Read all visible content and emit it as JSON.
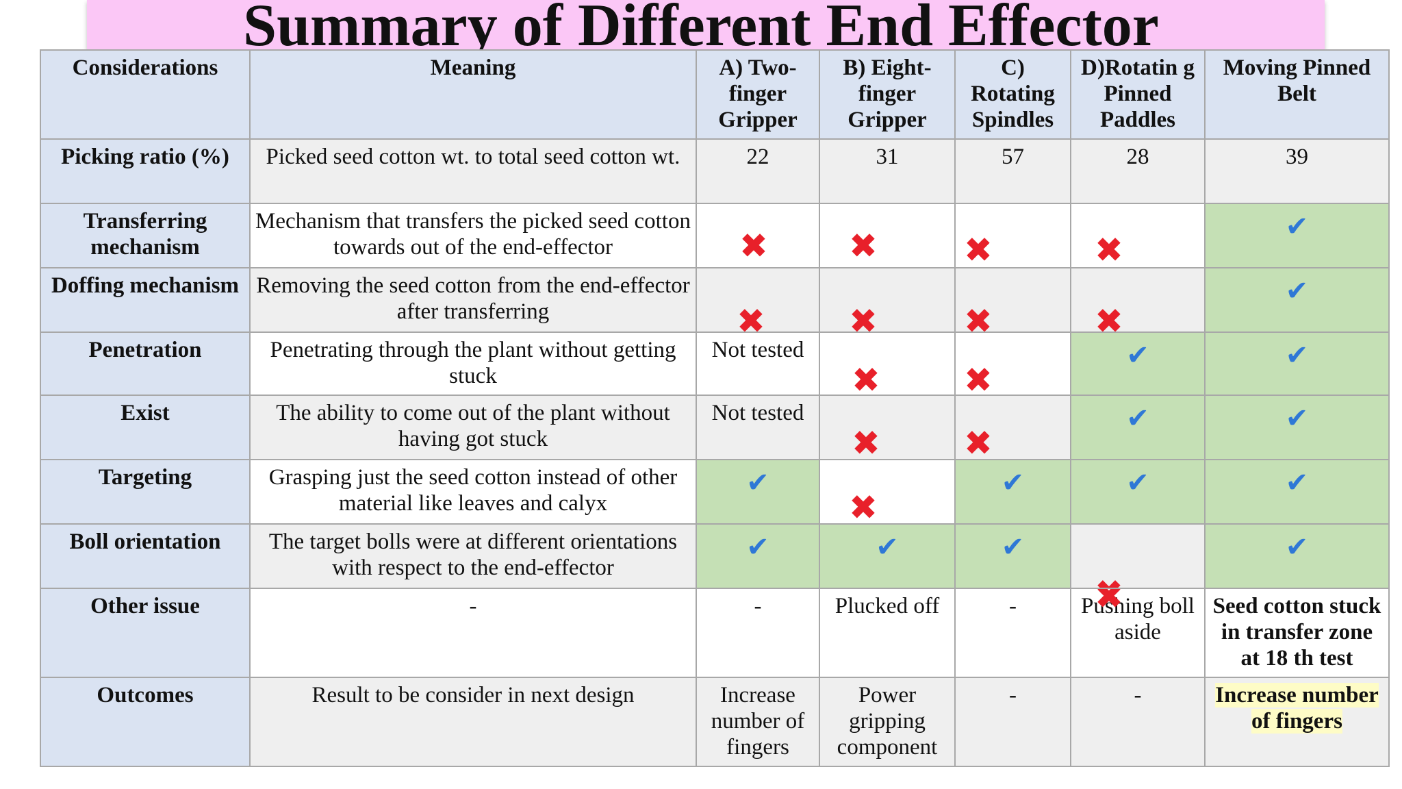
{
  "title": "Summary of Different End Effector",
  "headers": [
    "Considerations",
    "Meaning",
    "A) Two-finger Gripper",
    "B) Eight-finger Gripper",
    "C) Rotating Spindles",
    "D)Rotatin g Pinned Paddles",
    "Moving Pinned Belt"
  ],
  "rows": {
    "picking_ratio": {
      "label": "Picking ratio (%)",
      "meaning": "Picked seed cotton wt. to total seed cotton wt.",
      "values": [
        "22",
        "31",
        "57",
        "28",
        "39"
      ]
    },
    "transferring": {
      "label": "Transferring mechanism",
      "meaning": "Mechanism that transfers the picked seed cotton towards out of the end-effector",
      "marks": [
        "cross",
        "cross",
        "cross",
        "cross",
        "tick"
      ]
    },
    "doffing": {
      "label": "Doffing mechanism",
      "meaning": "Removing the seed cotton from the end-effector after transferring",
      "marks": [
        "cross",
        "cross",
        "cross",
        "cross",
        "tick"
      ]
    },
    "penetration": {
      "label": "Penetration",
      "meaning": "Penetrating through the plant without getting stuck",
      "a_text": "Not tested",
      "marks": [
        "none",
        "cross",
        "cross",
        "tick",
        "tick"
      ]
    },
    "exist": {
      "label": "Exist",
      "meaning": "The ability to come out of the plant without having got stuck",
      "a_text": "Not tested",
      "marks": [
        "none",
        "cross",
        "cross",
        "tick",
        "tick"
      ]
    },
    "targeting": {
      "label": "Targeting",
      "meaning": "Grasping just the seed cotton instead of other material like leaves and calyx",
      "marks": [
        "tick",
        "cross",
        "tick",
        "tick",
        "tick"
      ]
    },
    "boll_orientation": {
      "label": "Boll orientation",
      "meaning": "The target bolls were at different orientations with respect to the end-effector",
      "marks": [
        "tick",
        "tick",
        "tick",
        "cross",
        "tick"
      ]
    },
    "other_issue": {
      "label": "Other issue",
      "meaning": "-",
      "values": [
        "-",
        "Plucked off",
        "-",
        "Pushing boll aside",
        "Seed cotton stuck in transfer zone at 18 th test"
      ]
    },
    "outcomes": {
      "label": "Outcomes",
      "meaning": "Result to be consider in next design",
      "values": [
        "Increase number of fingers",
        "Power gripping component",
        "-",
        "-",
        "Increase number of fingers"
      ]
    }
  },
  "symbols": {
    "tick": "✔",
    "cross": "✖"
  },
  "colors": {
    "header_bg": "#dae3f2",
    "green": "#c5e0b5",
    "shade": "#efefef",
    "title_bg": "#fbc7f6",
    "tick": "#2f78d6",
    "cross": "#e8202a",
    "highlight": "#fefcc6"
  }
}
